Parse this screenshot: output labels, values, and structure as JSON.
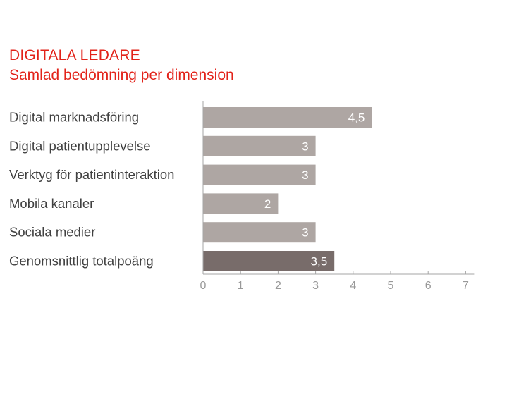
{
  "colors": {
    "title": "#e2231a",
    "text": "#404040",
    "bar": "#aea6a3",
    "bar_highlight": "#786c6a",
    "axis": "#a5a5a5",
    "tick_label": "#999999",
    "data_label": "#ffffff"
  },
  "chart_data": {
    "type": "bar",
    "orientation": "horizontal",
    "title": "DIGITALA LEDARE",
    "subtitle": "Samlad bedömning per dimension",
    "categories": [
      "Digital marknadsföring",
      "Digital patientupplevelse",
      "Verktyg för patientinteraktion",
      "Mobila kanaler",
      "Sociala medier",
      "Genomsnittlig totalpoäng"
    ],
    "values": [
      4.5,
      3,
      3,
      2,
      3,
      3.5
    ],
    "value_labels": [
      "4,5",
      "3",
      "3",
      "2",
      "3",
      "3,5"
    ],
    "highlight_index": 5,
    "xlim": [
      0,
      7
    ],
    "xticks": [
      0,
      1,
      2,
      3,
      4,
      5,
      6,
      7
    ],
    "xtick_labels": [
      "0",
      "1",
      "2",
      "3",
      "4",
      "5",
      "6",
      "7"
    ],
    "grid": false,
    "legend": "none"
  }
}
